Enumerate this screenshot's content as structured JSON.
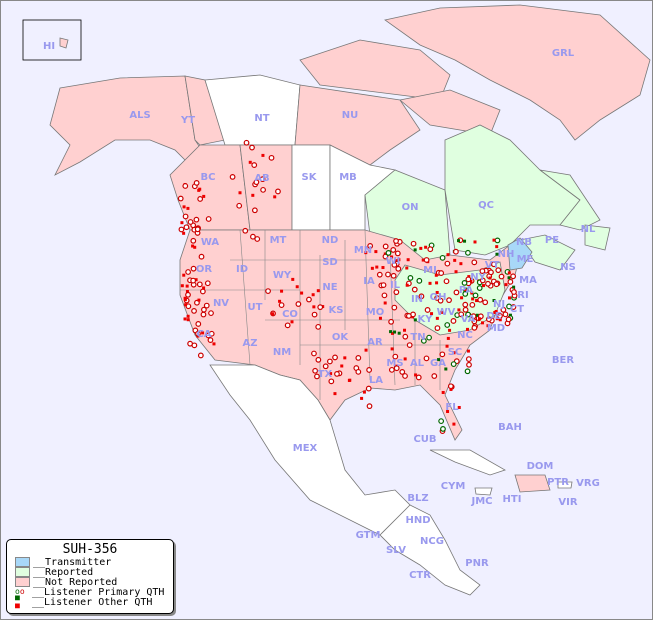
{
  "map": {
    "background": "#f0f0ff",
    "colors": {
      "transmitter": "#a8d8f8",
      "reported": "#e0ffe0",
      "not_reported": "#ffd0d0",
      "no_data": "#ffffff",
      "primary_qth": "#cc0000",
      "primary_qth_reported": "#006600",
      "other_qth": "#ee0000"
    },
    "inset_label": "HI",
    "region_labels": [
      "ALS",
      "YT",
      "NT",
      "NU",
      "GRL",
      "BC",
      "AB",
      "SK",
      "MB",
      "ON",
      "QC",
      "NL",
      "NB",
      "PE",
      "NS",
      "ME",
      "NH",
      "VT",
      "MA",
      "NY",
      "RI",
      "CT",
      "NJ",
      "PA",
      "DE",
      "MD",
      "WV",
      "VA",
      "OH",
      "MI",
      "IN",
      "KY",
      "WI",
      "IL",
      "TN",
      "NC",
      "SC",
      "GA",
      "AL",
      "MS",
      "FL",
      "LA",
      "AR",
      "MO",
      "IA",
      "MN",
      "ND",
      "SD",
      "NE",
      "KS",
      "OK",
      "TX",
      "NM",
      "CO",
      "WY",
      "MT",
      "ID",
      "UT",
      "AZ",
      "NV",
      "CA",
      "OR",
      "WA",
      "MEX",
      "CUB",
      "BAH",
      "BER",
      "CYM",
      "JMC",
      "HTI",
      "DOM",
      "PTR",
      "VRG",
      "VIR",
      "BLZ",
      "HND",
      "GTM",
      "SLV",
      "NCG",
      "CTR",
      "PNR"
    ]
  },
  "legend": {
    "title": "SUH-356",
    "items": [
      {
        "label": "__Transmitter",
        "icon": "swatch-blue"
      },
      {
        "label": "__Reported",
        "icon": "swatch-green"
      },
      {
        "label": "__Not Reported",
        "icon": "swatch-pink"
      },
      {
        "label": "__Listener Primary QTH",
        "icon": "open-circles"
      },
      {
        "label": "__Listener Other QTH",
        "icon": "small-squares"
      }
    ]
  }
}
